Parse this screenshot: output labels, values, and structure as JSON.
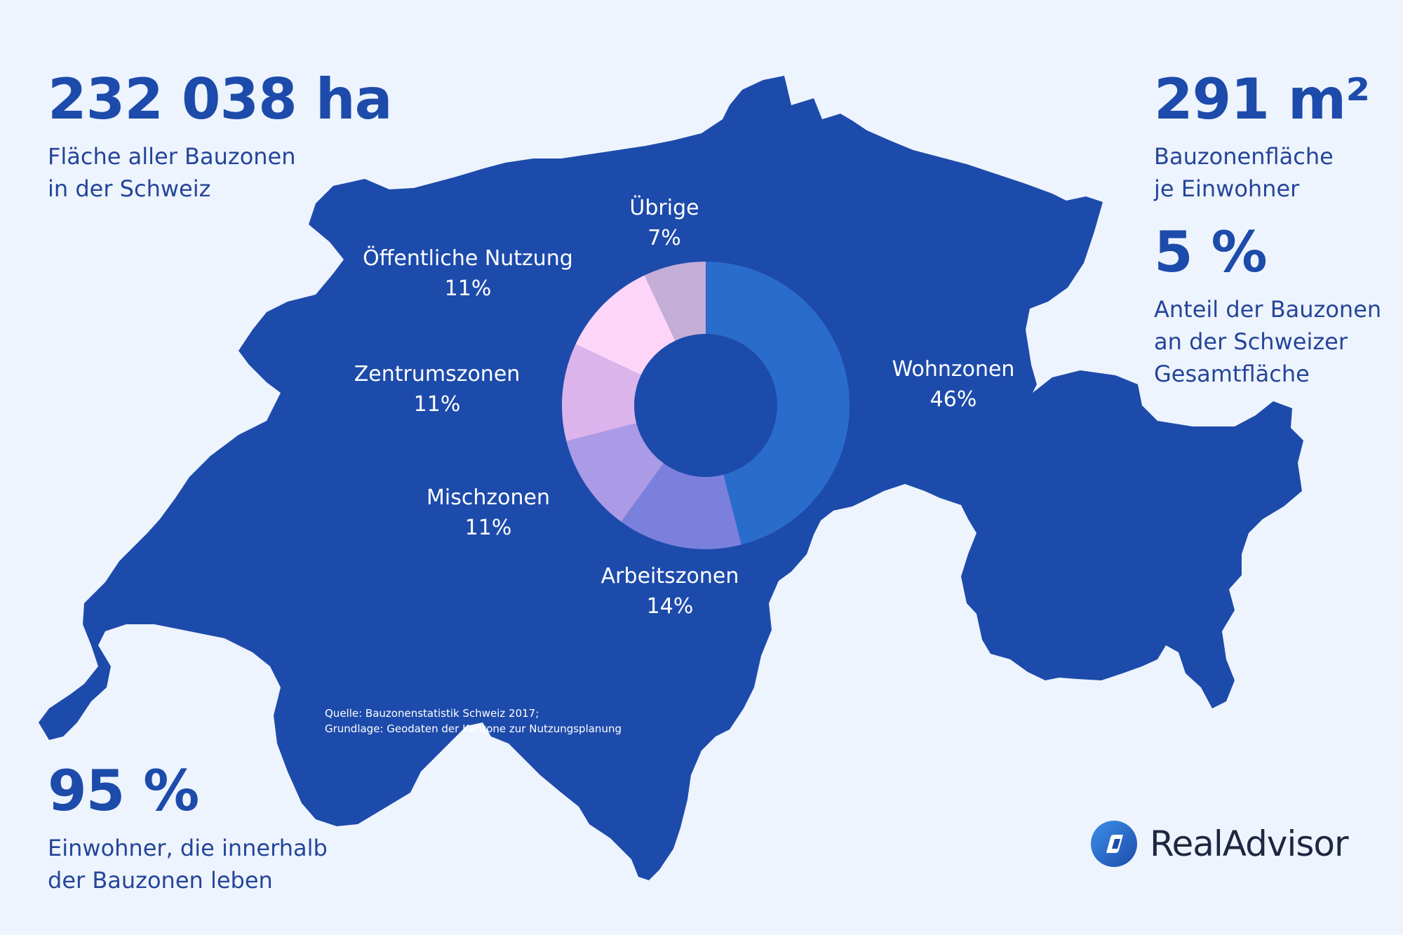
{
  "stats": {
    "area": {
      "value": "232 038 ha",
      "lines": [
        "Fläche aller Bauzonen",
        "in der Schweiz"
      ]
    },
    "per_person": {
      "value": "291 m²",
      "lines": [
        "Bauzonenfläche",
        "je Einwohner"
      ]
    },
    "share": {
      "value": "5 %",
      "lines": [
        "Anteil der Bauzonen",
        "an der Schweizer",
        "Gesamtfläche"
      ]
    },
    "population": {
      "value": "95 %",
      "lines": [
        "Einwohner, die innerhalb",
        "der Bauzonen leben"
      ]
    }
  },
  "source": {
    "line1": "Quelle: Bauzonenstatistik Schweiz 2017;",
    "line2": "Grundlage: Geodaten der Kantone zur Nutzungsplanung"
  },
  "logo": {
    "text": "RealAdvisor",
    "icon": "realadvisor-logo-icon"
  },
  "colors": {
    "background": "#eef4fd",
    "map": "#1d4bab",
    "stat_text": "#1d4bab"
  },
  "chart_data": {
    "type": "pie",
    "donut": true,
    "unit": "%",
    "categories": [
      "Wohnzonen",
      "Arbeitszonen",
      "Mischzonen",
      "Zentrumszonen",
      "Öffentliche Nutzung",
      "Übrige"
    ],
    "values": [
      46,
      14,
      11,
      11,
      11,
      7
    ],
    "labels": [
      "46%",
      "14%",
      "11%",
      "11%",
      "11%",
      "7%"
    ],
    "colors": [
      "#2a6ccb",
      "#7b80dd",
      "#ab9ae6",
      "#dbb4ec",
      "#fdd5f9",
      "#c4aed8"
    ],
    "start": "top",
    "direction": "clockwise",
    "legend": "none"
  }
}
